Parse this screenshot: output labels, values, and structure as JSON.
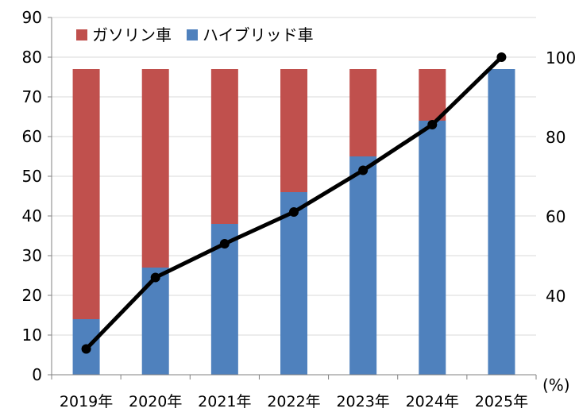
{
  "chart_data": {
    "type": "bar",
    "stacked": true,
    "categories": [
      "2019年",
      "2020年",
      "2021年",
      "2022年",
      "2023年",
      "2024年",
      "2025年"
    ],
    "series": [
      {
        "name": "ハイブリッド車",
        "kind": "bar",
        "axis": "left",
        "color": "#4F81BD",
        "values": [
          14,
          27,
          38,
          46,
          55,
          64,
          77
        ]
      },
      {
        "name": "ガソリン車",
        "kind": "bar",
        "axis": "left",
        "color": "#C0504D",
        "values": [
          63,
          50,
          39,
          31,
          22,
          13,
          0
        ]
      },
      {
        "kind": "line",
        "axis": "right",
        "color": "#000000",
        "values": [
          26.5,
          44.5,
          53,
          61,
          71.5,
          83,
          100
        ]
      }
    ],
    "left_axis": {
      "ylim": [
        0,
        90
      ],
      "ticks": [
        0,
        10,
        20,
        30,
        40,
        50,
        60,
        70,
        80,
        90
      ]
    },
    "right_axis": {
      "ylim": [
        20,
        110
      ],
      "ticks": [
        40,
        60,
        80,
        100
      ],
      "unit_label": "(%)"
    },
    "legend": {
      "position": "top-left",
      "entries": [
        "ガソリン車",
        "ハイブリッド車"
      ]
    },
    "grid": "horizontal"
  }
}
